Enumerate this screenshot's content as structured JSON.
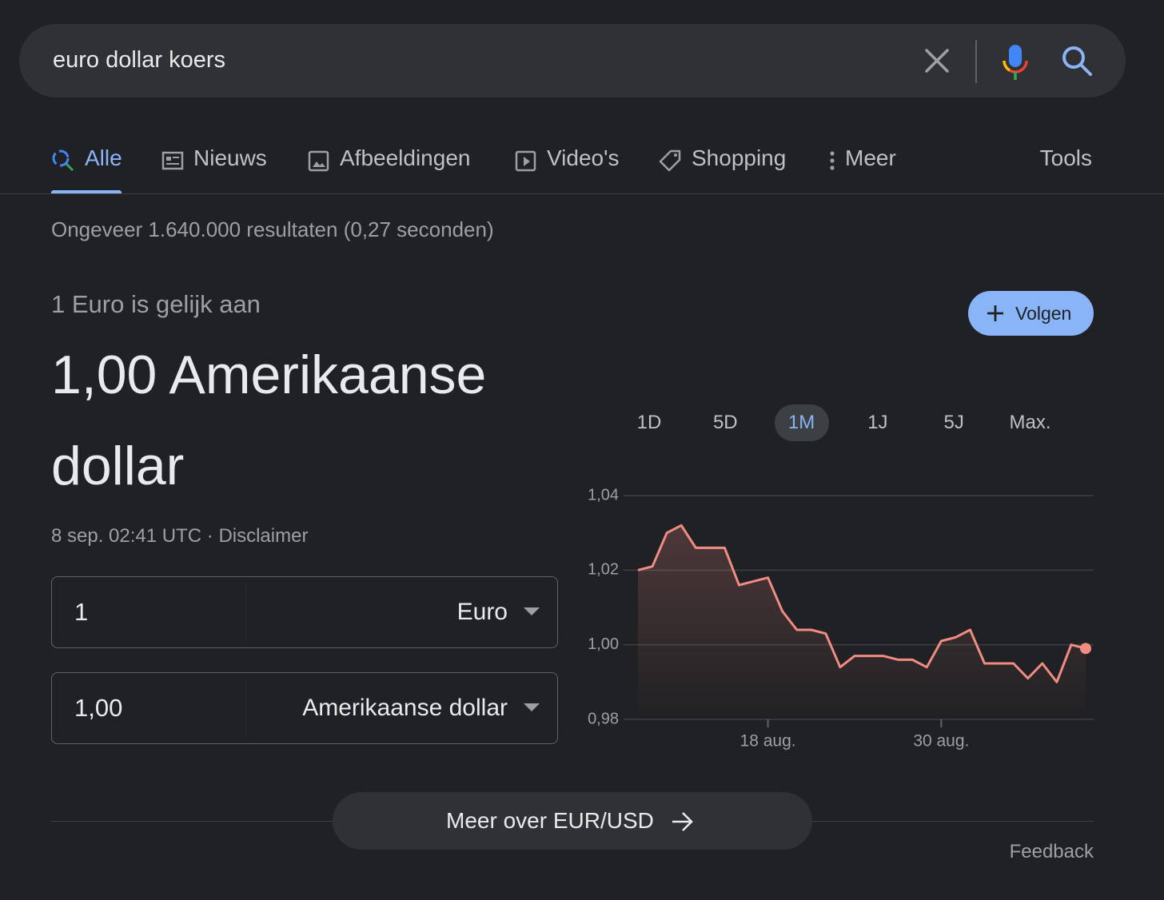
{
  "search": {
    "query": "euro dollar koers"
  },
  "tabs": [
    "Alle",
    "Nieuws",
    "Afbeeldingen",
    "Video's",
    "Shopping",
    "Meer"
  ],
  "tools": "Tools",
  "result_stats": "Ongeveer 1.640.000 resultaten (0,27 seconden)",
  "converter": {
    "lead": "1 Euro is gelijk aan",
    "result": "1,00 Amerikaanse dollar",
    "timestamp": "8 sep. 02:41 UTC ·",
    "disclaimer": "Disclaimer",
    "follow": "Volgen",
    "from": {
      "amount": "1",
      "currency": "Euro"
    },
    "to": {
      "amount": "1,00",
      "currency": "Amerikaanse dollar"
    },
    "more": "Meer over EUR/USD"
  },
  "ranges": [
    "1D",
    "5D",
    "1M",
    "1J",
    "5J",
    "Max."
  ],
  "selected_range": "1M",
  "chart_data": {
    "type": "line",
    "categories": [
      null,
      null,
      null,
      null,
      null,
      null,
      null,
      null,
      null,
      "18 aug.",
      null,
      null,
      null,
      null,
      null,
      null,
      null,
      null,
      null,
      null,
      null,
      "30 aug.",
      null,
      null,
      null,
      null,
      null,
      null,
      null,
      null,
      null,
      null
    ],
    "values": [
      1.02,
      1.021,
      1.03,
      1.032,
      1.026,
      1.026,
      1.026,
      1.016,
      1.017,
      1.018,
      1.009,
      1.004,
      1.004,
      1.003,
      0.994,
      0.997,
      0.997,
      0.997,
      0.996,
      0.996,
      0.994,
      1.001,
      1.002,
      1.004,
      0.995,
      0.995,
      0.995,
      0.991,
      0.995,
      0.99,
      1.0,
      0.999
    ],
    "color": "#f28b82",
    "ylim": [
      0.98,
      1.04
    ],
    "yticks": [
      {
        "value": 0.98,
        "label": "0,98"
      },
      {
        "value": 1.0,
        "label": "1,00"
      },
      {
        "value": 1.02,
        "label": "1,02"
      },
      {
        "value": 1.04,
        "label": "1,04"
      }
    ],
    "grid": true
  },
  "feedback": "Feedback"
}
